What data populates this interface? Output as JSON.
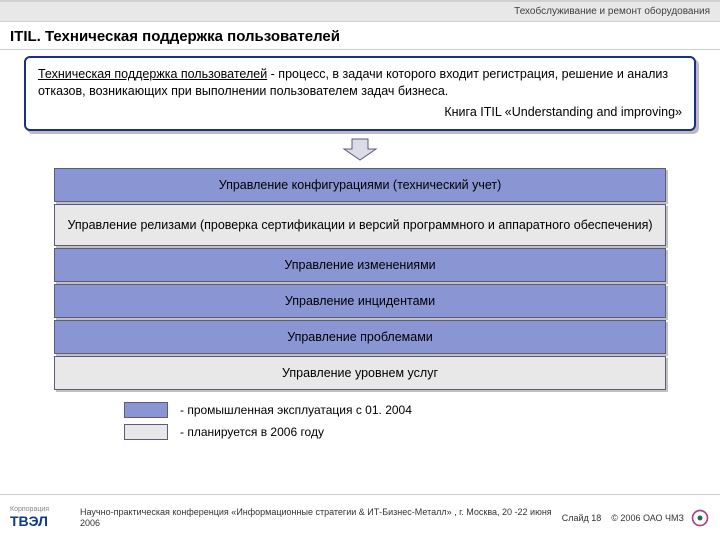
{
  "header": {
    "category": "Техобслуживание и ремонт оборудования"
  },
  "title": "ITIL. Техническая поддержка пользователей",
  "definition": {
    "term": "Техническая поддержка пользователей",
    "body": " -  процесс, в задачи которого входит регистрация, решение и анализ отказов, возникающих при выполнении пользователем задач бизнеса.",
    "book": "Книга ITIL «Understanding and improving»"
  },
  "colors": {
    "production": "#8a95d4",
    "planned": "#e8e8e8",
    "border": "#5b5b7a",
    "defborder": "#1a2f8a",
    "arrow_fill": "#dcdce8",
    "arrow_stroke": "#5b5b7a"
  },
  "bars": [
    {
      "label": "Управление конфигурациями (технический учет)",
      "state": "production"
    },
    {
      "label": "Управление релизами (проверка сертификации и версий программного и аппаратного обеспечения)",
      "state": "planned",
      "tall": true
    },
    {
      "label": "Управление изменениями",
      "state": "production"
    },
    {
      "label": "Управление инцидентами",
      "state": "production"
    },
    {
      "label": "Управление проблемами",
      "state": "production"
    },
    {
      "label": "Управление уровнем услуг",
      "state": "planned"
    }
  ],
  "legend": [
    {
      "state": "production",
      "text": "- промышленная эксплуатация с 01. 2004"
    },
    {
      "state": "planned",
      "text": "- планируется в 2006 году"
    }
  ],
  "footer": {
    "logo_small": "Корпорация",
    "logo": "ТВЭЛ",
    "conference": "Научно-практическая конференция «Информационные стратегии & ИТ-Бизнес-Металл» , г. Москва, 20 -22 июня 2006",
    "slide": "Слайд 18",
    "copyright": "© 2006 ОАО ЧМЗ"
  }
}
